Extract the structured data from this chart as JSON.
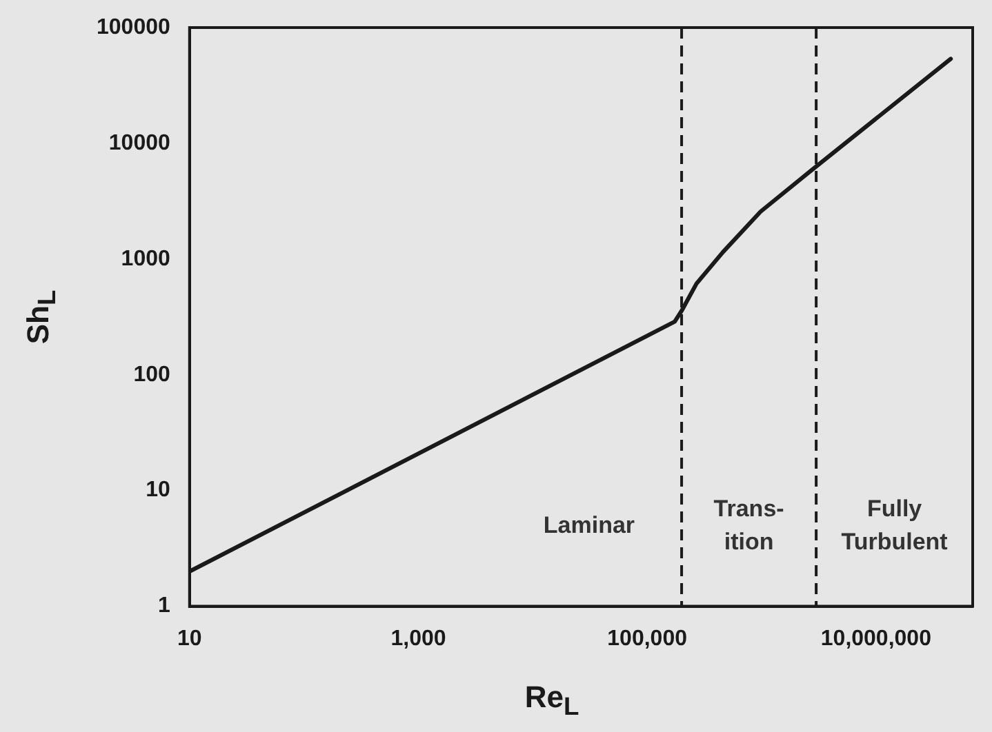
{
  "chart_data": {
    "type": "line",
    "xlabel": "Re$_{L}$",
    "ylabel": "Sh$_{L}$",
    "log": "xy",
    "grid": false,
    "legend": false,
    "marker": "none",
    "line_style": "solid",
    "xlim": [
      10,
      70000000
    ],
    "ylim": [
      1,
      100000
    ],
    "xticks": [
      10,
      {
        "value": 1000,
        "label": "1,000"
      },
      {
        "value": 100000,
        "label": "100,000"
      },
      {
        "value": 10000000,
        "label": "10,000,000"
      }
    ],
    "yticks": [
      1,
      10,
      100,
      1000,
      10000,
      100000
    ],
    "series": [
      {
        "color": "#1a1a1a",
        "x": [
          10,
          174000,
          200000,
          270000,
          460000,
          980000,
          2700000,
          45000000
        ],
        "values": [
          2,
          288,
          357,
          614,
          1150,
          2570,
          5800,
          53700
        ]
      }
    ],
    "ref_lines": [
      {
        "axis": "x",
        "value": 200000,
        "color": "#1a1a1a",
        "line_style": "dashed"
      },
      {
        "axis": "x",
        "value": 3000000,
        "color": "#1a1a1a",
        "line_style": "dashed"
      }
    ],
    "annotations": [
      "Laminar",
      "Trans-\nition",
      "Fully\nTurbulent"
    ]
  }
}
